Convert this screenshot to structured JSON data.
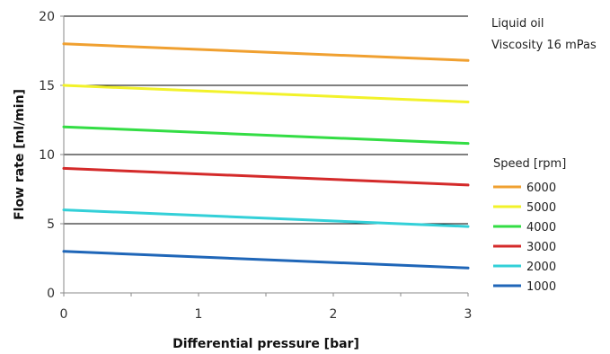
{
  "chart_data": {
    "type": "line",
    "xlabel": "Differential pressure [bar]",
    "ylabel": "Flow rate [ml/min]",
    "xlim": [
      0,
      3
    ],
    "ylim": [
      0,
      20
    ],
    "xticks": [
      0,
      1,
      2,
      3
    ],
    "yticks": [
      0,
      5,
      10,
      15,
      20
    ],
    "grid": "horizontal",
    "notes": [
      "Liquid oil",
      "Viscosity 16 mPas"
    ],
    "legend": {
      "title": "Speed [rpm]",
      "placement": "right"
    },
    "x": [
      0,
      3
    ],
    "series": [
      {
        "name": "6000",
        "values": [
          18.0,
          16.8
        ],
        "color": "#F0A030"
      },
      {
        "name": "5000",
        "values": [
          15.0,
          13.8
        ],
        "color": "#F2F22A"
      },
      {
        "name": "4000",
        "values": [
          12.0,
          10.8
        ],
        "color": "#33DD44"
      },
      {
        "name": "3000",
        "values": [
          9.0,
          7.8
        ],
        "color": "#D42A2A"
      },
      {
        "name": "2000",
        "values": [
          6.0,
          4.8
        ],
        "color": "#33D0D8"
      },
      {
        "name": "1000",
        "values": [
          3.0,
          1.8
        ],
        "color": "#1F66B8"
      }
    ]
  }
}
